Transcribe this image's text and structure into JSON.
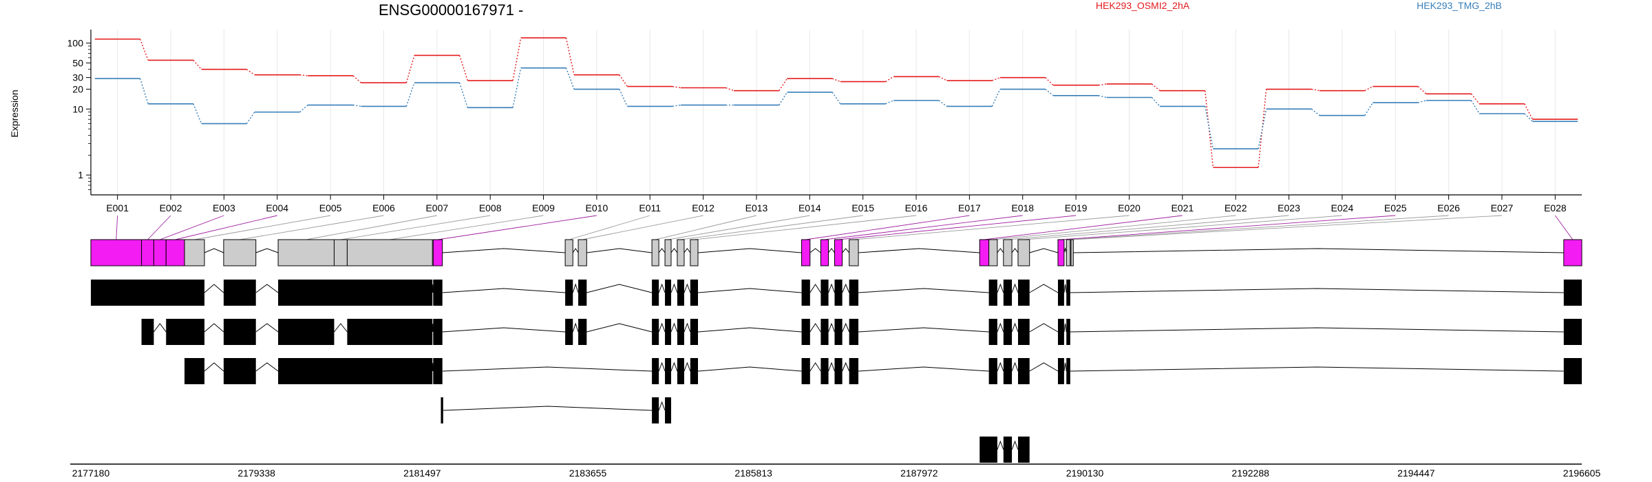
{
  "chart_data": {
    "type": "line",
    "title": "ENSG00000167971 -",
    "ylabel": "Expression",
    "y_scale": "log",
    "ylim": [
      0.5,
      160
    ],
    "y_ticks": [
      {
        "value": 1,
        "label": "1"
      },
      {
        "value": 10,
        "label": "10"
      },
      {
        "value": 20,
        "label": "20"
      },
      {
        "value": 30,
        "label": "30"
      },
      {
        "value": 50,
        "label": "50"
      },
      {
        "value": 100,
        "label": "100"
      }
    ],
    "categories": [
      "E001",
      "E002",
      "E003",
      "E004",
      "E005",
      "E006",
      "E007",
      "E008",
      "E009",
      "E010",
      "E011",
      "E012",
      "E013",
      "E014",
      "E015",
      "E016",
      "E017",
      "E018",
      "E019",
      "E020",
      "E021",
      "E022",
      "E023",
      "E024",
      "E025",
      "E026",
      "E027",
      "E028"
    ],
    "series": [
      {
        "name": "HEK293_OSMI2_2hA",
        "color": "#e41a1c",
        "values": [
          115,
          55,
          40,
          33,
          32,
          25,
          65,
          27,
          120,
          33,
          22,
          21,
          19,
          29,
          26,
          31,
          27,
          30,
          23,
          24,
          19,
          1.3,
          20,
          19,
          22,
          17,
          12,
          7.0
        ]
      },
      {
        "name": "HEK293_TMG_2hB",
        "color": "#377eb8",
        "values": [
          29,
          12,
          6.0,
          9.0,
          11.5,
          11,
          25,
          10.5,
          42,
          20,
          11,
          11.5,
          11.5,
          18,
          12,
          13.5,
          11,
          20,
          16,
          15,
          11,
          2.5,
          10,
          8.0,
          12.5,
          13.5,
          8.5,
          6.5
        ]
      }
    ],
    "genome_axis": {
      "range": [
        2177180,
        2196605
      ],
      "tick_labels": [
        "2177180",
        "2179338",
        "2181497",
        "2183655",
        "2185813",
        "2187972",
        "2190130",
        "2192288",
        "2194447",
        "2196605"
      ]
    },
    "exon_blocks": [
      {
        "id": "E001",
        "start": 2177180,
        "end": 2177840,
        "highlight": true
      },
      {
        "id": "E002",
        "start": 2177840,
        "end": 2178000,
        "highlight": true
      },
      {
        "id": "E003",
        "start": 2178000,
        "end": 2178160,
        "highlight": true
      },
      {
        "id": "E004",
        "start": 2178160,
        "end": 2178400,
        "highlight": true
      },
      {
        "id": "E005",
        "start": 2178400,
        "end": 2178660,
        "highlight": false
      },
      {
        "id": "E006",
        "start": 2178910,
        "end": 2179330,
        "highlight": false
      },
      {
        "id": "E007",
        "start": 2179620,
        "end": 2180350,
        "highlight": false
      },
      {
        "id": "E008",
        "start": 2180350,
        "end": 2180520,
        "highlight": false
      },
      {
        "id": "E009",
        "start": 2180520,
        "end": 2181630,
        "highlight": false
      },
      {
        "id": "E010",
        "start": 2181640,
        "end": 2181760,
        "highlight": true
      },
      {
        "id": "E011",
        "start": 2183360,
        "end": 2183460,
        "highlight": false
      },
      {
        "id": "E012",
        "start": 2183530,
        "end": 2183640,
        "highlight": false
      },
      {
        "id": "E013",
        "start": 2184490,
        "end": 2184580,
        "highlight": false
      },
      {
        "id": "E014",
        "start": 2184660,
        "end": 2184740,
        "highlight": false
      },
      {
        "id": "E015",
        "start": 2184820,
        "end": 2184910,
        "highlight": false
      },
      {
        "id": "E016",
        "start": 2184990,
        "end": 2185090,
        "highlight": false
      },
      {
        "id": "E017",
        "start": 2186440,
        "end": 2186550,
        "highlight": true
      },
      {
        "id": "E018",
        "start": 2186690,
        "end": 2186790,
        "highlight": true
      },
      {
        "id": "E019",
        "start": 2186870,
        "end": 2186970,
        "highlight": true
      },
      {
        "id": "E020",
        "start": 2187060,
        "end": 2187180,
        "highlight": false
      },
      {
        "id": "E021",
        "start": 2188760,
        "end": 2188880,
        "highlight": true
      },
      {
        "id": "E022",
        "start": 2188880,
        "end": 2188990,
        "highlight": false
      },
      {
        "id": "E023",
        "start": 2189070,
        "end": 2189180,
        "highlight": false
      },
      {
        "id": "E024",
        "start": 2189260,
        "end": 2189410,
        "highlight": false
      },
      {
        "id": "E025",
        "start": 2189780,
        "end": 2189860,
        "highlight": true
      },
      {
        "id": "E026",
        "start": 2189890,
        "end": 2189940,
        "highlight": false
      },
      {
        "id": "E027",
        "start": 2189950,
        "end": 2189980,
        "highlight": false
      },
      {
        "id": "E028",
        "start": 2196370,
        "end": 2196605,
        "highlight": true
      }
    ],
    "transcripts": [
      {
        "exons": [
          [
            2177180,
            2178660
          ],
          [
            2178910,
            2179330
          ],
          [
            2179620,
            2181630
          ],
          [
            2181640,
            2181760
          ],
          [
            2183360,
            2183460
          ],
          [
            2183530,
            2183640
          ],
          [
            2184490,
            2184580
          ],
          [
            2184660,
            2184740
          ],
          [
            2184820,
            2184910
          ],
          [
            2184990,
            2185090
          ],
          [
            2186440,
            2186550
          ],
          [
            2186690,
            2186790
          ],
          [
            2186870,
            2186970
          ],
          [
            2187060,
            2187180
          ],
          [
            2188880,
            2188990
          ],
          [
            2189070,
            2189180
          ],
          [
            2189260,
            2189410
          ],
          [
            2189780,
            2189860
          ],
          [
            2189890,
            2189940
          ],
          [
            2196370,
            2196605
          ]
        ]
      },
      {
        "exons": [
          [
            2177840,
            2178000
          ],
          [
            2178160,
            2178660
          ],
          [
            2178910,
            2179330
          ],
          [
            2179620,
            2180350
          ],
          [
            2180520,
            2181630
          ],
          [
            2181640,
            2181760
          ],
          [
            2183360,
            2183460
          ],
          [
            2183530,
            2183640
          ],
          [
            2184490,
            2184580
          ],
          [
            2184660,
            2184740
          ],
          [
            2184820,
            2184910
          ],
          [
            2184990,
            2185090
          ],
          [
            2186440,
            2186550
          ],
          [
            2186690,
            2186790
          ],
          [
            2186870,
            2186970
          ],
          [
            2187060,
            2187180
          ],
          [
            2188880,
            2188990
          ],
          [
            2189070,
            2189180
          ],
          [
            2189260,
            2189410
          ],
          [
            2189780,
            2189860
          ],
          [
            2189890,
            2189940
          ],
          [
            2196370,
            2196605
          ]
        ]
      },
      {
        "exons": [
          [
            2178400,
            2178660
          ],
          [
            2178910,
            2179330
          ],
          [
            2179620,
            2181630
          ],
          [
            2181640,
            2181760
          ],
          [
            2184490,
            2184580
          ],
          [
            2184660,
            2184740
          ],
          [
            2184820,
            2184910
          ],
          [
            2184990,
            2185090
          ],
          [
            2186440,
            2186550
          ],
          [
            2186690,
            2186790
          ],
          [
            2186870,
            2186970
          ],
          [
            2187060,
            2187180
          ],
          [
            2188880,
            2188990
          ],
          [
            2189070,
            2189180
          ],
          [
            2189260,
            2189410
          ],
          [
            2189780,
            2189860
          ],
          [
            2189890,
            2189940
          ],
          [
            2196370,
            2196605
          ]
        ]
      },
      {
        "exons": [
          [
            2181740,
            2181770
          ],
          [
            2184490,
            2184580
          ],
          [
            2184660,
            2184740
          ]
        ]
      },
      {
        "exons": [
          [
            2188760,
            2188990
          ],
          [
            2189070,
            2189180
          ],
          [
            2189260,
            2189410
          ]
        ]
      }
    ]
  }
}
